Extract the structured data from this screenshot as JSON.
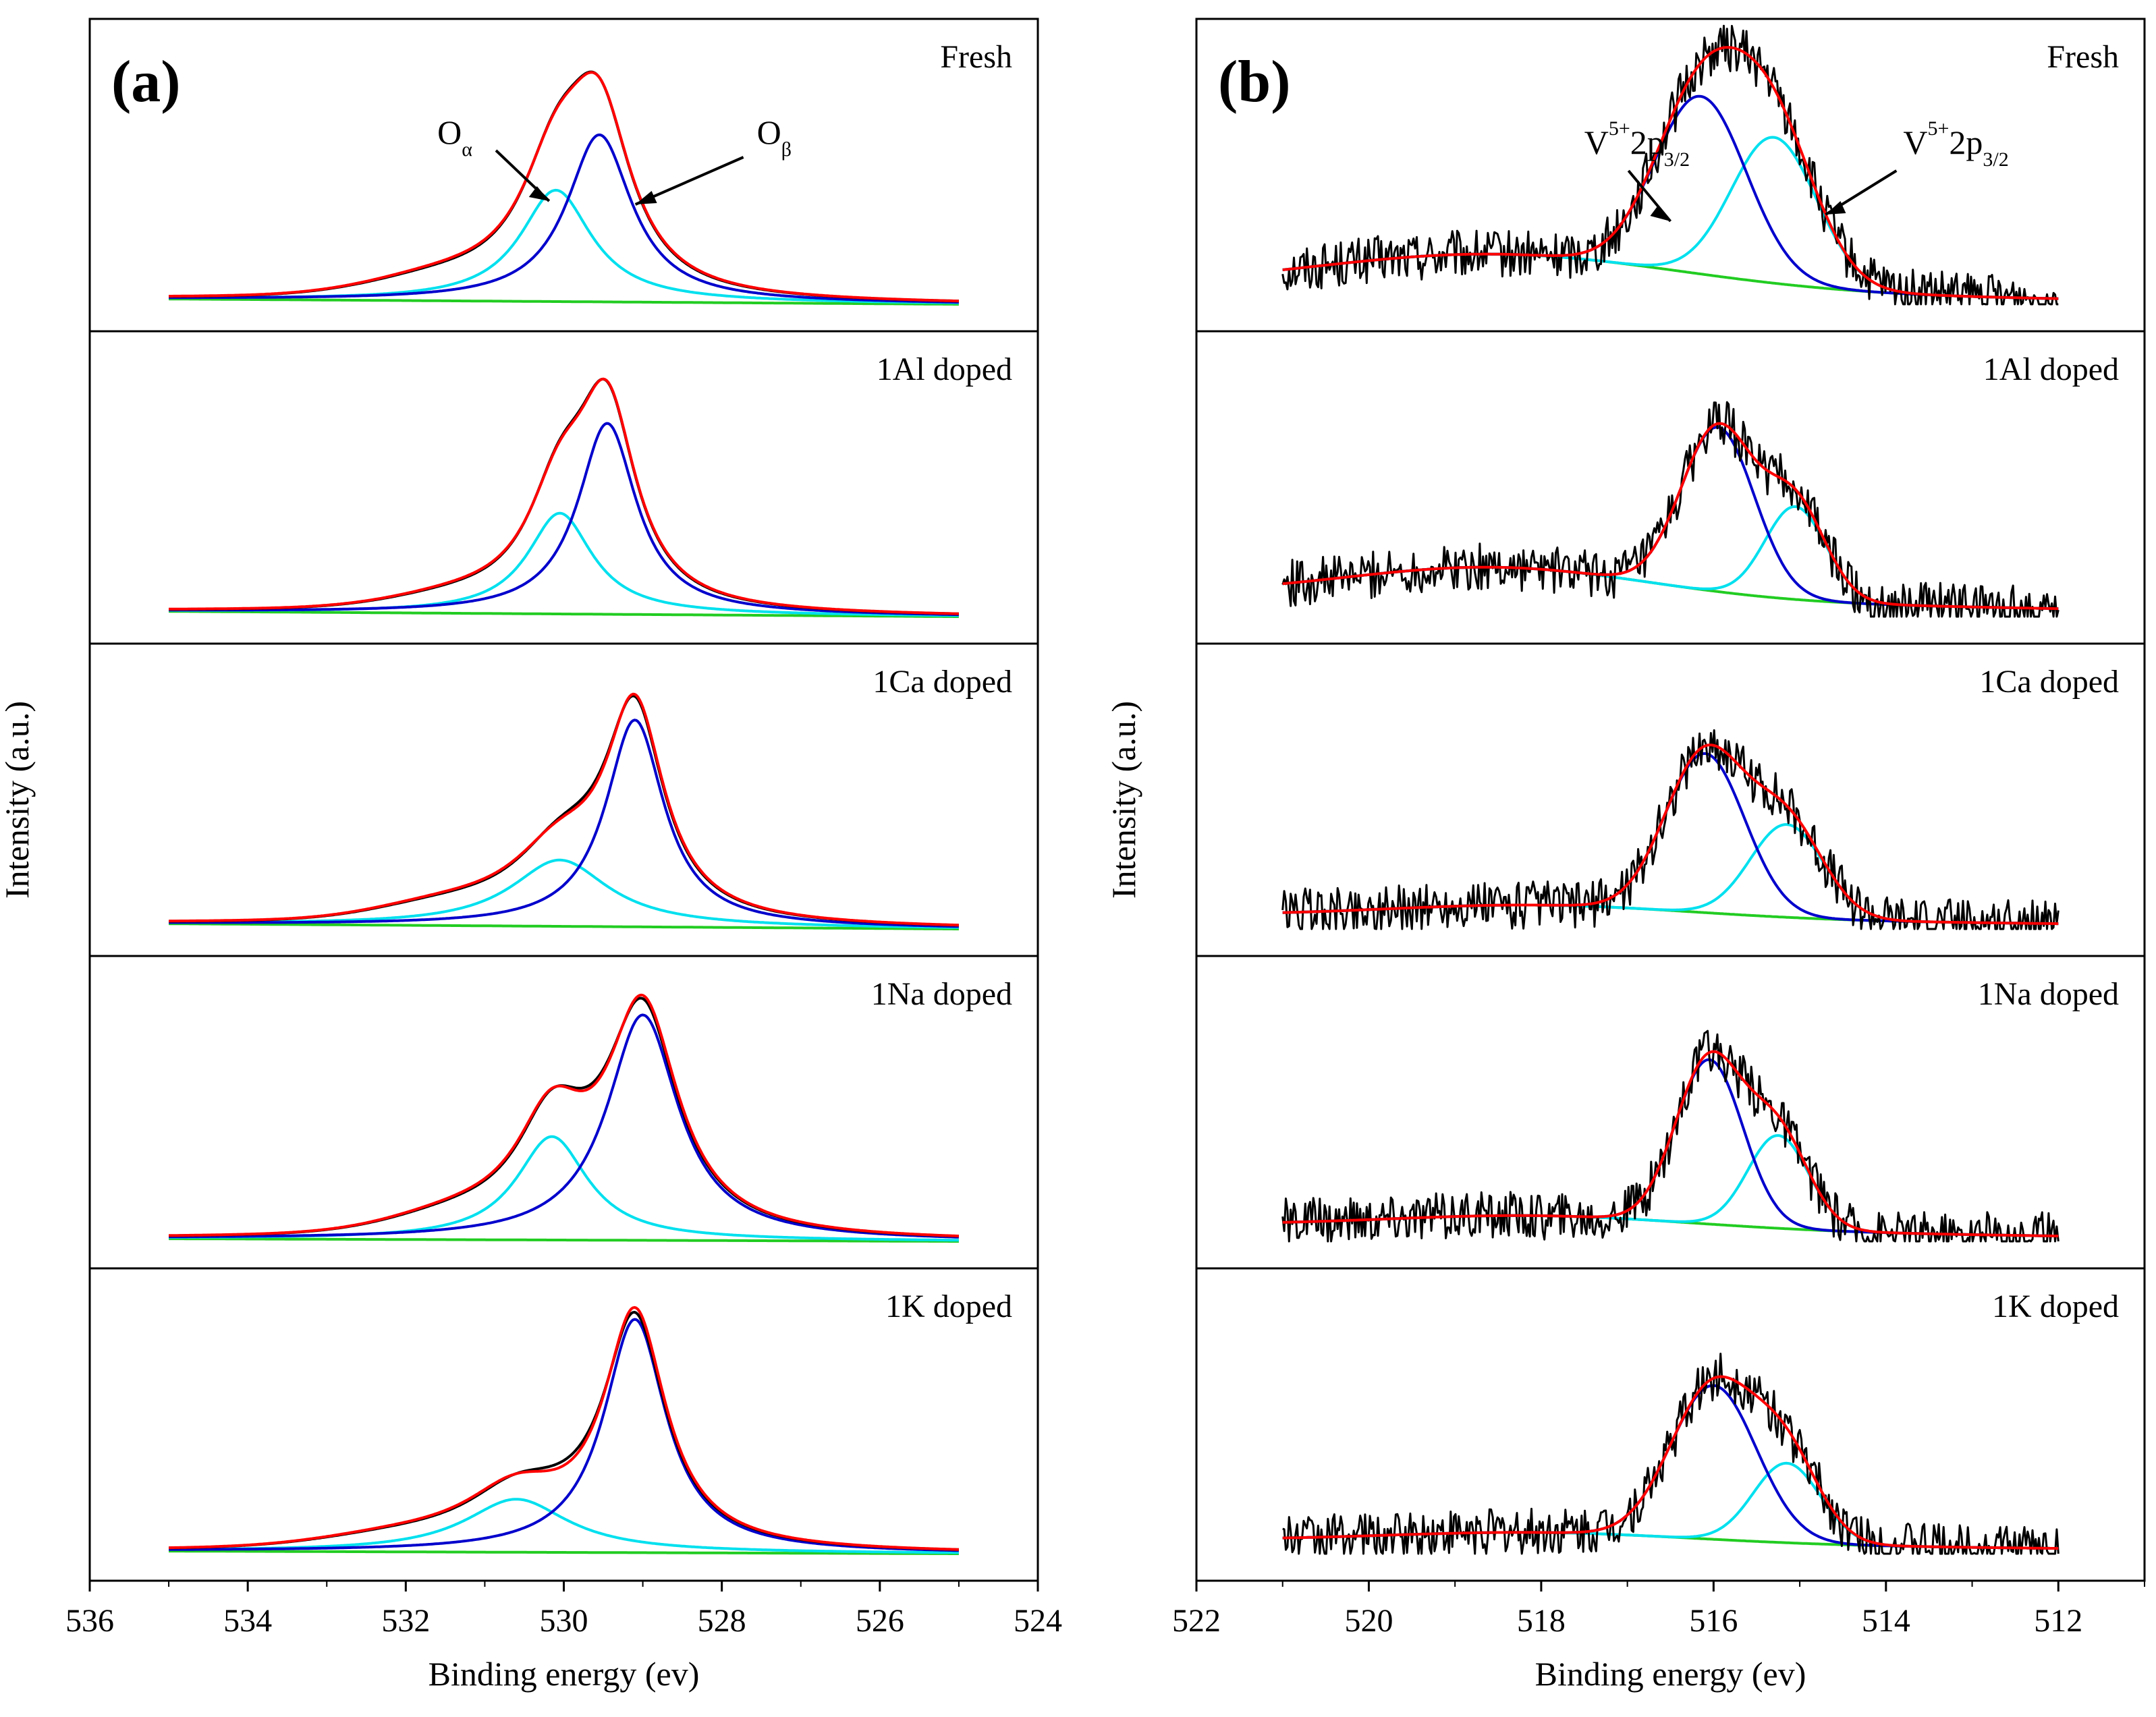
{
  "chart_data": [
    {
      "type": "line",
      "panel_label": "(a)",
      "xlabel": "Binding energy (ev)",
      "ylabel": "Intensity (a.u.)",
      "xlim": [
        536,
        524
      ],
      "x_reversed": true,
      "xticks": [
        "536",
        "534",
        "532",
        "530",
        "528",
        "526",
        "524"
      ],
      "data_range": [
        535,
        525
      ],
      "annotations": {
        "alpha": {
          "main": "O",
          "sub": "α"
        },
        "beta": {
          "main": "O",
          "sub": "β"
        }
      },
      "subplots": [
        {
          "label": "Fresh",
          "peaks": [
            {
              "name": "O_alpha",
              "center": 530.1,
              "height": 0.42,
              "width": 0.55
            },
            {
              "name": "O_beta",
              "center": 529.55,
              "height": 0.63,
              "width": 0.5
            }
          ],
          "tail": {
            "height": 0.06,
            "center": 531.5,
            "width": 1.3
          },
          "baseline": [
            0.02,
            0.0
          ],
          "envelope_peak": 0.88
        },
        {
          "label": "1Al doped",
          "peaks": [
            {
              "name": "O_alpha",
              "center": 530.05,
              "height": 0.38,
              "width": 0.5
            },
            {
              "name": "O_beta",
              "center": 529.45,
              "height": 0.72,
              "width": 0.45
            }
          ],
          "tail": {
            "height": 0.04,
            "center": 531.3,
            "width": 1.2
          },
          "baseline": [
            0.02,
            0.0
          ],
          "envelope_peak": 0.9
        },
        {
          "label": "1Ca doped",
          "peaks": [
            {
              "name": "O_alpha",
              "center": 530.05,
              "height": 0.25,
              "width": 0.75
            },
            {
              "name": "O_beta",
              "center": 529.1,
              "height": 0.78,
              "width": 0.45
            }
          ],
          "tail": {
            "height": 0.05,
            "center": 531.5,
            "width": 1.2
          },
          "baseline": [
            0.02,
            0.0
          ],
          "envelope_peak": 0.88
        },
        {
          "label": "1Na doped",
          "peaks": [
            {
              "name": "O_alpha",
              "center": 530.15,
              "height": 0.39,
              "width": 0.55
            },
            {
              "name": "O_beta",
              "center": 529.0,
              "height": 0.85,
              "width": 0.55
            }
          ],
          "tail": {
            "height": 0.06,
            "center": 531.3,
            "width": 1.2
          },
          "baseline": [
            0.01,
            0.0
          ],
          "envelope_peak": 0.93
        },
        {
          "label": "1K doped",
          "peaks": [
            {
              "name": "O_alpha",
              "center": 530.6,
              "height": 0.2,
              "width": 0.8
            },
            {
              "name": "O_beta",
              "center": 529.1,
              "height": 0.88,
              "width": 0.48
            }
          ],
          "tail": {
            "height": 0.04,
            "center": 532.0,
            "width": 1.4
          },
          "baseline": [
            0.01,
            0.0
          ],
          "envelope_peak": 0.93
        }
      ]
    },
    {
      "type": "line",
      "panel_label": "(b)",
      "xlabel": "Binding energy (ev)",
      "ylabel": "Intensity (a.u.)",
      "xlim": [
        522,
        511
      ],
      "x_reversed": true,
      "xticks": [
        "522",
        "520",
        "518",
        "516",
        "514",
        "512"
      ],
      "data_range": [
        521,
        512
      ],
      "annotations": {
        "left": {
          "main": "V",
          "sup": "5+",
          "mid": "2p",
          "sub": "3/2"
        },
        "right": {
          "main": "V",
          "sup": "5+",
          "mid": "2p",
          "sub": "3/2"
        }
      },
      "subplots": [
        {
          "label": "Fresh",
          "peaks": [
            {
              "name": "V5+_a",
              "center": 516.15,
              "height": 0.67,
              "width": 0.75
            },
            {
              "name": "V5+_b",
              "center": 515.3,
              "height": 0.55,
              "width": 0.7
            }
          ],
          "background": {
            "height": 0.14,
            "center": 518.5,
            "width": 3.0
          },
          "baseline": [
            0.06,
            0.02
          ],
          "envelope_peak": 0.83
        },
        {
          "label": "1Al doped",
          "peaks": [
            {
              "name": "V5+_a",
              "center": 515.95,
              "height": 0.62,
              "width": 0.6
            },
            {
              "name": "V5+_b",
              "center": 515.05,
              "height": 0.35,
              "width": 0.5
            }
          ],
          "background": {
            "height": 0.12,
            "center": 518.5,
            "width": 2.5
          },
          "baseline": [
            0.08,
            0.03
          ],
          "envelope_peak": 0.72
        },
        {
          "label": "1Ca doped",
          "peaks": [
            {
              "name": "V5+_a",
              "center": 516.1,
              "height": 0.6,
              "width": 0.65
            },
            {
              "name": "V5+_b",
              "center": 515.15,
              "height": 0.35,
              "width": 0.6
            }
          ],
          "background": {
            "height": 0.05,
            "center": 518.0,
            "width": 2.5
          },
          "baseline": [
            0.05,
            0.02
          ],
          "envelope_peak": 0.73
        },
        {
          "label": "1Na doped",
          "peaks": [
            {
              "name": "V5+_a",
              "center": 516.05,
              "height": 0.62,
              "width": 0.55
            },
            {
              "name": "V5+_b",
              "center": 515.25,
              "height": 0.35,
              "width": 0.5
            }
          ],
          "background": {
            "height": 0.05,
            "center": 518.0,
            "width": 2.5
          },
          "baseline": [
            0.06,
            0.02
          ],
          "envelope_peak": 0.75
        },
        {
          "label": "1K doped",
          "peaks": [
            {
              "name": "V5+_a",
              "center": 516.0,
              "height": 0.58,
              "width": 0.7
            },
            {
              "name": "V5+_b",
              "center": 515.15,
              "height": 0.3,
              "width": 0.55
            }
          ],
          "background": {
            "height": 0.04,
            "center": 518.0,
            "width": 2.5
          },
          "baseline": [
            0.05,
            0.02
          ],
          "envelope_peak": 0.75
        }
      ]
    }
  ],
  "colors": {
    "raw": "#000000",
    "envelope": "#ff0000",
    "peak_high": "#0000cc",
    "peak_low": "#00e0ee",
    "background": "#22cc22"
  }
}
